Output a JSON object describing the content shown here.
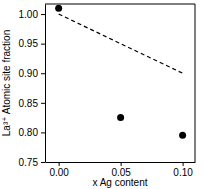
{
  "chart_data": {
    "type": "scatter",
    "xlabel": "x Ag content",
    "ylabel": "La³⁺ Atomic site fraction",
    "xlim": [
      -0.011,
      0.11
    ],
    "ylim": [
      0.75,
      1.017
    ],
    "xticks": [
      {
        "value": 0,
        "label": "0.00"
      },
      0.05,
      {
        "value": 0.1,
        "label": "0.10"
      }
    ],
    "yticks": [
      0.75,
      {
        "value": 0.8,
        "label": "0.80"
      },
      0.85,
      {
        "value": 0.9,
        "label": "0.90"
      },
      0.95,
      {
        "value": 1,
        "label": "1.00"
      }
    ],
    "grid": false,
    "series": [
      {
        "type": "scatter",
        "marker": "circle",
        "color": "#000000",
        "x": [
          0,
          0.05,
          0.1
        ],
        "values": [
          1.01,
          0.825,
          0.795
        ]
      },
      {
        "type": "line",
        "line_style": "dashed",
        "color": "#000000",
        "x": [
          0,
          0.1
        ],
        "values": [
          1.0,
          0.9
        ]
      }
    ]
  }
}
